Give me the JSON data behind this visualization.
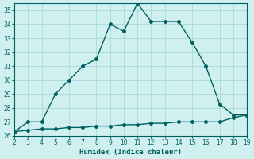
{
  "x": [
    2,
    3,
    4,
    5,
    6,
    7,
    8,
    9,
    10,
    11,
    12,
    13,
    14,
    15,
    16,
    17,
    18,
    19
  ],
  "y_upper": [
    26.3,
    27.0,
    27.0,
    29.0,
    30.0,
    31.0,
    31.5,
    34.0,
    33.5,
    35.5,
    34.2,
    34.2,
    34.2,
    32.7,
    31.0,
    28.3,
    27.5,
    27.5
  ],
  "y_lower": [
    26.3,
    26.4,
    26.5,
    26.5,
    26.6,
    26.6,
    26.7,
    26.7,
    26.8,
    26.8,
    26.9,
    26.9,
    27.0,
    27.0,
    27.0,
    27.0,
    27.3,
    27.5
  ],
  "line_color": "#006060",
  "bg_color": "#d0f0f0",
  "grid_color": "#a8d8d8",
  "xlabel": "Humidex (Indice chaleur)",
  "xlim": [
    2,
    19
  ],
  "ylim": [
    26,
    35.5
  ],
  "yticks": [
    26,
    27,
    28,
    29,
    30,
    31,
    32,
    33,
    34,
    35
  ],
  "xticks": [
    2,
    3,
    4,
    5,
    6,
    7,
    8,
    9,
    10,
    11,
    12,
    13,
    14,
    15,
    16,
    17,
    18,
    19
  ],
  "markersize": 2.5,
  "linewidth": 1.0
}
